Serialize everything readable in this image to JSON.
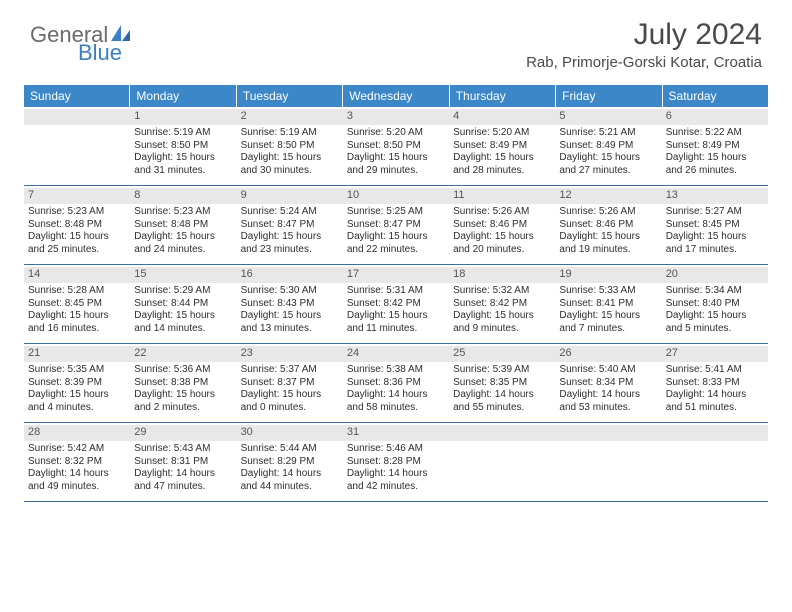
{
  "logo": {
    "text_top": "General",
    "text_bottom": "Blue",
    "icon_color": "#3b7fc4"
  },
  "header": {
    "month_title": "July 2024",
    "location": "Rab, Primorje-Gorski Kotar, Croatia"
  },
  "style": {
    "header_bg": "#3b87c8",
    "header_text": "#ffffff",
    "daynum_bg": "#e8e8e8",
    "cell_text": "#2e2e2e",
    "border_color": "#3b6fa0",
    "title_color": "#4a4a4a",
    "logo_gray": "#6b6b6b",
    "page_bg": "#ffffff",
    "month_title_fontsize": 30,
    "location_fontsize": 15,
    "dayheader_fontsize": 12,
    "daynum_fontsize": 11,
    "detail_fontsize": 10
  },
  "day_headers": [
    "Sunday",
    "Monday",
    "Tuesday",
    "Wednesday",
    "Thursday",
    "Friday",
    "Saturday"
  ],
  "weeks": [
    [
      {
        "n": "",
        "sunrise": "",
        "sunset": "",
        "daylight": ""
      },
      {
        "n": "1",
        "sunrise": "Sunrise: 5:19 AM",
        "sunset": "Sunset: 8:50 PM",
        "daylight": "Daylight: 15 hours and 31 minutes."
      },
      {
        "n": "2",
        "sunrise": "Sunrise: 5:19 AM",
        "sunset": "Sunset: 8:50 PM",
        "daylight": "Daylight: 15 hours and 30 minutes."
      },
      {
        "n": "3",
        "sunrise": "Sunrise: 5:20 AM",
        "sunset": "Sunset: 8:50 PM",
        "daylight": "Daylight: 15 hours and 29 minutes."
      },
      {
        "n": "4",
        "sunrise": "Sunrise: 5:20 AM",
        "sunset": "Sunset: 8:49 PM",
        "daylight": "Daylight: 15 hours and 28 minutes."
      },
      {
        "n": "5",
        "sunrise": "Sunrise: 5:21 AM",
        "sunset": "Sunset: 8:49 PM",
        "daylight": "Daylight: 15 hours and 27 minutes."
      },
      {
        "n": "6",
        "sunrise": "Sunrise: 5:22 AM",
        "sunset": "Sunset: 8:49 PM",
        "daylight": "Daylight: 15 hours and 26 minutes."
      }
    ],
    [
      {
        "n": "7",
        "sunrise": "Sunrise: 5:23 AM",
        "sunset": "Sunset: 8:48 PM",
        "daylight": "Daylight: 15 hours and 25 minutes."
      },
      {
        "n": "8",
        "sunrise": "Sunrise: 5:23 AM",
        "sunset": "Sunset: 8:48 PM",
        "daylight": "Daylight: 15 hours and 24 minutes."
      },
      {
        "n": "9",
        "sunrise": "Sunrise: 5:24 AM",
        "sunset": "Sunset: 8:47 PM",
        "daylight": "Daylight: 15 hours and 23 minutes."
      },
      {
        "n": "10",
        "sunrise": "Sunrise: 5:25 AM",
        "sunset": "Sunset: 8:47 PM",
        "daylight": "Daylight: 15 hours and 22 minutes."
      },
      {
        "n": "11",
        "sunrise": "Sunrise: 5:26 AM",
        "sunset": "Sunset: 8:46 PM",
        "daylight": "Daylight: 15 hours and 20 minutes."
      },
      {
        "n": "12",
        "sunrise": "Sunrise: 5:26 AM",
        "sunset": "Sunset: 8:46 PM",
        "daylight": "Daylight: 15 hours and 19 minutes."
      },
      {
        "n": "13",
        "sunrise": "Sunrise: 5:27 AM",
        "sunset": "Sunset: 8:45 PM",
        "daylight": "Daylight: 15 hours and 17 minutes."
      }
    ],
    [
      {
        "n": "14",
        "sunrise": "Sunrise: 5:28 AM",
        "sunset": "Sunset: 8:45 PM",
        "daylight": "Daylight: 15 hours and 16 minutes."
      },
      {
        "n": "15",
        "sunrise": "Sunrise: 5:29 AM",
        "sunset": "Sunset: 8:44 PM",
        "daylight": "Daylight: 15 hours and 14 minutes."
      },
      {
        "n": "16",
        "sunrise": "Sunrise: 5:30 AM",
        "sunset": "Sunset: 8:43 PM",
        "daylight": "Daylight: 15 hours and 13 minutes."
      },
      {
        "n": "17",
        "sunrise": "Sunrise: 5:31 AM",
        "sunset": "Sunset: 8:42 PM",
        "daylight": "Daylight: 15 hours and 11 minutes."
      },
      {
        "n": "18",
        "sunrise": "Sunrise: 5:32 AM",
        "sunset": "Sunset: 8:42 PM",
        "daylight": "Daylight: 15 hours and 9 minutes."
      },
      {
        "n": "19",
        "sunrise": "Sunrise: 5:33 AM",
        "sunset": "Sunset: 8:41 PM",
        "daylight": "Daylight: 15 hours and 7 minutes."
      },
      {
        "n": "20",
        "sunrise": "Sunrise: 5:34 AM",
        "sunset": "Sunset: 8:40 PM",
        "daylight": "Daylight: 15 hours and 5 minutes."
      }
    ],
    [
      {
        "n": "21",
        "sunrise": "Sunrise: 5:35 AM",
        "sunset": "Sunset: 8:39 PM",
        "daylight": "Daylight: 15 hours and 4 minutes."
      },
      {
        "n": "22",
        "sunrise": "Sunrise: 5:36 AM",
        "sunset": "Sunset: 8:38 PM",
        "daylight": "Daylight: 15 hours and 2 minutes."
      },
      {
        "n": "23",
        "sunrise": "Sunrise: 5:37 AM",
        "sunset": "Sunset: 8:37 PM",
        "daylight": "Daylight: 15 hours and 0 minutes."
      },
      {
        "n": "24",
        "sunrise": "Sunrise: 5:38 AM",
        "sunset": "Sunset: 8:36 PM",
        "daylight": "Daylight: 14 hours and 58 minutes."
      },
      {
        "n": "25",
        "sunrise": "Sunrise: 5:39 AM",
        "sunset": "Sunset: 8:35 PM",
        "daylight": "Daylight: 14 hours and 55 minutes."
      },
      {
        "n": "26",
        "sunrise": "Sunrise: 5:40 AM",
        "sunset": "Sunset: 8:34 PM",
        "daylight": "Daylight: 14 hours and 53 minutes."
      },
      {
        "n": "27",
        "sunrise": "Sunrise: 5:41 AM",
        "sunset": "Sunset: 8:33 PM",
        "daylight": "Daylight: 14 hours and 51 minutes."
      }
    ],
    [
      {
        "n": "28",
        "sunrise": "Sunrise: 5:42 AM",
        "sunset": "Sunset: 8:32 PM",
        "daylight": "Daylight: 14 hours and 49 minutes."
      },
      {
        "n": "29",
        "sunrise": "Sunrise: 5:43 AM",
        "sunset": "Sunset: 8:31 PM",
        "daylight": "Daylight: 14 hours and 47 minutes."
      },
      {
        "n": "30",
        "sunrise": "Sunrise: 5:44 AM",
        "sunset": "Sunset: 8:29 PM",
        "daylight": "Daylight: 14 hours and 44 minutes."
      },
      {
        "n": "31",
        "sunrise": "Sunrise: 5:46 AM",
        "sunset": "Sunset: 8:28 PM",
        "daylight": "Daylight: 14 hours and 42 minutes."
      },
      {
        "n": "",
        "sunrise": "",
        "sunset": "",
        "daylight": ""
      },
      {
        "n": "",
        "sunrise": "",
        "sunset": "",
        "daylight": ""
      },
      {
        "n": "",
        "sunrise": "",
        "sunset": "",
        "daylight": ""
      }
    ]
  ]
}
